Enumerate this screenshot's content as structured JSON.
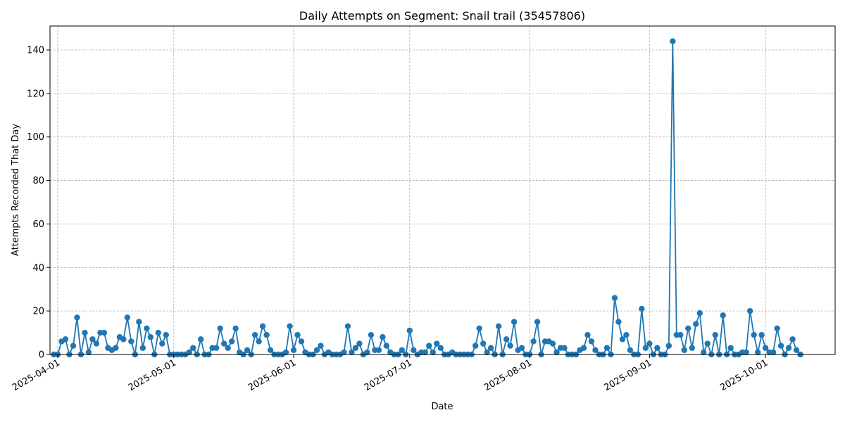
{
  "chart_data": {
    "type": "line",
    "title": "Daily Attempts on Segment: Snail trail (35457806)",
    "xlabel": "Date",
    "ylabel": "Attempts Recorded That Day",
    "start_date": "2025-03-31",
    "xlim": [
      "2025-03-30",
      "2025-10-19"
    ],
    "ylim": [
      0,
      151
    ],
    "x_ticks": [
      "2025-04-01",
      "2025-05-01",
      "2025-06-01",
      "2025-07-01",
      "2025-08-01",
      "2025-09-01",
      "2025-10-01"
    ],
    "y_ticks": [
      0,
      20,
      40,
      60,
      80,
      100,
      120,
      140
    ],
    "grid": true,
    "color": "#1f77b4",
    "values": [
      0,
      0,
      6,
      7,
      0,
      4,
      17,
      0,
      10,
      1,
      7,
      5,
      10,
      10,
      3,
      2,
      3,
      8,
      7,
      17,
      6,
      0,
      15,
      3,
      12,
      8,
      0,
      10,
      5,
      9,
      0,
      0,
      0,
      0,
      0,
      1,
      3,
      0,
      7,
      0,
      0,
      3,
      3,
      12,
      5,
      3,
      6,
      12,
      1,
      0,
      2,
      0,
      9,
      6,
      13,
      9,
      2,
      0,
      0,
      0,
      1,
      13,
      2,
      9,
      6,
      1,
      0,
      0,
      2,
      4,
      0,
      1,
      0,
      0,
      0,
      1,
      13,
      1,
      3,
      5,
      0,
      1,
      9,
      2,
      2,
      8,
      4,
      1,
      0,
      0,
      2,
      0,
      11,
      2,
      0,
      1,
      1,
      4,
      1,
      5,
      3,
      0,
      0,
      1,
      0,
      0,
      0,
      0,
      0,
      4,
      12,
      5,
      1,
      3,
      0,
      13,
      0,
      7,
      4,
      15,
      2,
      3,
      0,
      0,
      6,
      15,
      0,
      6,
      6,
      5,
      1,
      3,
      3,
      0,
      0,
      0,
      2,
      3,
      9,
      6,
      2,
      0,
      0,
      3,
      0,
      26,
      15,
      7,
      9,
      2,
      0,
      0,
      21,
      3,
      5,
      0,
      3,
      0,
      0,
      4,
      144,
      9,
      9,
      2,
      12,
      3,
      14,
      19,
      1,
      5,
      0,
      9,
      0,
      18,
      0,
      3,
      0,
      0,
      1,
      1,
      20,
      9,
      1,
      9,
      3,
      1,
      1,
      12,
      4,
      0,
      3,
      7,
      2,
      0
    ]
  }
}
